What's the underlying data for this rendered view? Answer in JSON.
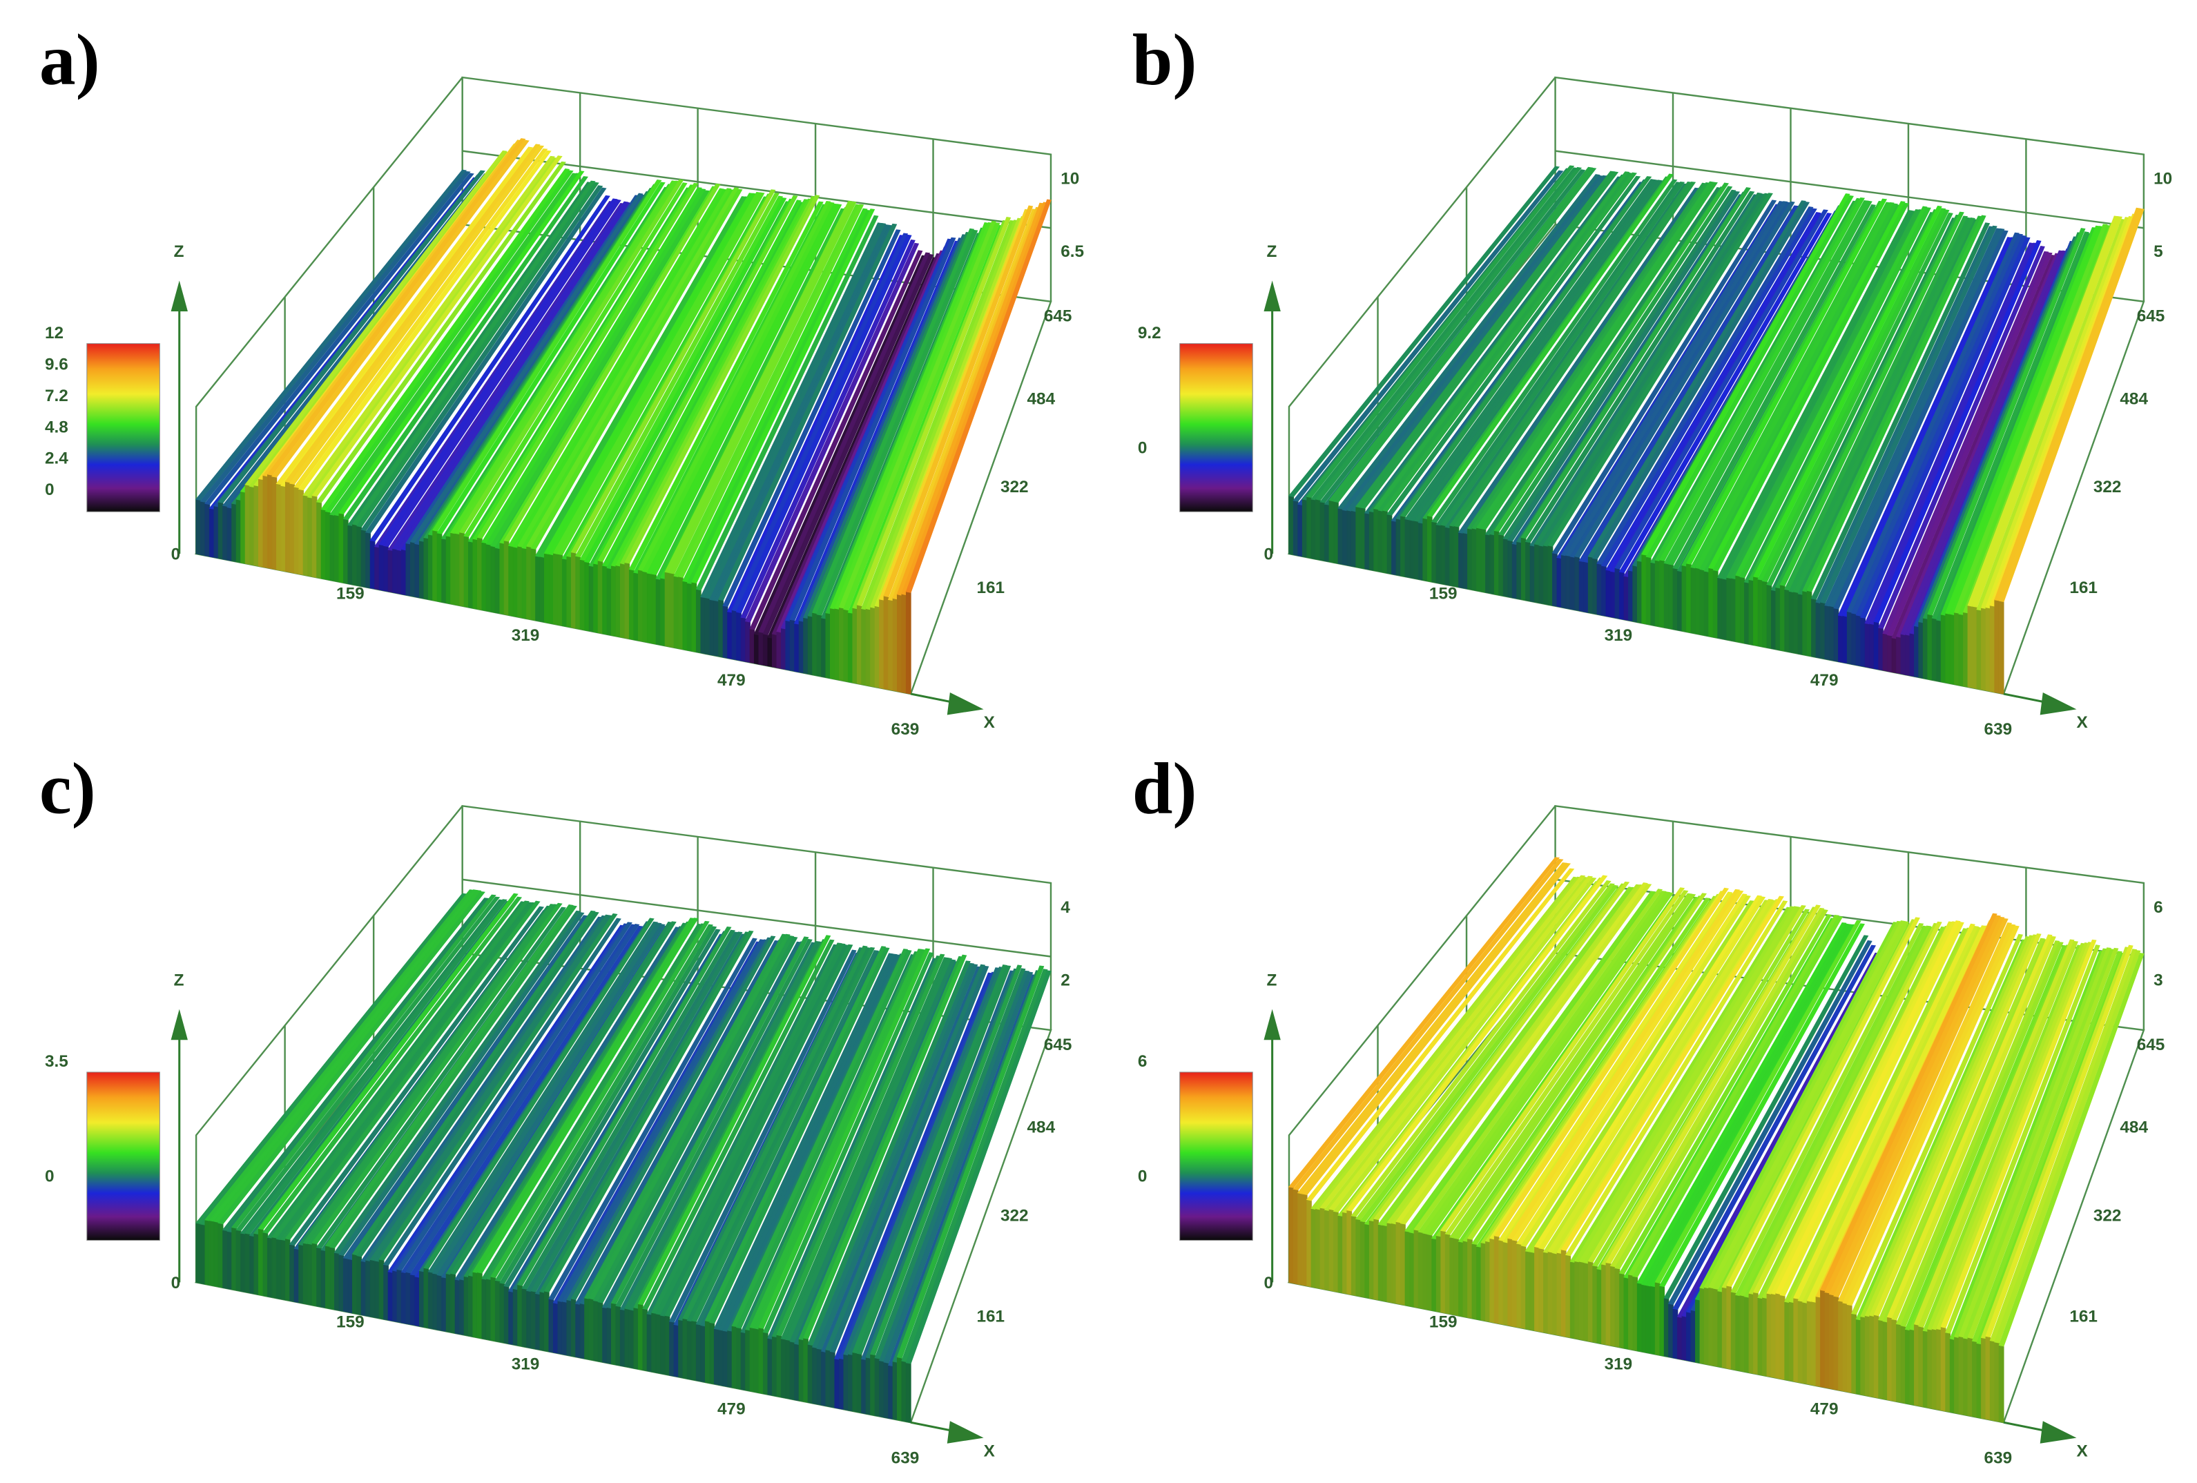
{
  "panels": [
    {
      "label": "a)",
      "axis_z": "Z",
      "axis_x": "X",
      "x_ticks": [
        "0",
        "159",
        "319",
        "479",
        "639"
      ],
      "y_ticks": [
        "161",
        "322",
        "484",
        "645"
      ],
      "z_ticks": [
        "10",
        "6.5"
      ],
      "colorbar_ticks": [
        "12",
        "9.6",
        "7.2",
        "4.8",
        "2.4",
        "0"
      ]
    },
    {
      "label": "b)",
      "axis_z": "Z",
      "axis_x": "X",
      "x_ticks": [
        "0",
        "159",
        "319",
        "479",
        "639"
      ],
      "y_ticks": [
        "161",
        "322",
        "484",
        "645"
      ],
      "z_ticks": [
        "10",
        "5"
      ],
      "colorbar_ticks": [
        "9.2",
        "0"
      ]
    },
    {
      "label": "c)",
      "axis_z": "Z",
      "axis_x": "X",
      "x_ticks": [
        "0",
        "159",
        "319",
        "479",
        "639"
      ],
      "y_ticks": [
        "161",
        "322",
        "484",
        "645"
      ],
      "z_ticks": [
        "4",
        "2"
      ],
      "colorbar_ticks": [
        "3.5",
        "0"
      ]
    },
    {
      "label": "d)",
      "axis_z": "Z",
      "axis_x": "X",
      "x_ticks": [
        "0",
        "159",
        "319",
        "479",
        "639"
      ],
      "y_ticks": [
        "161",
        "322",
        "484",
        "645"
      ],
      "z_ticks": [
        "6",
        "3"
      ],
      "colorbar_ticks": [
        "6",
        "0"
      ]
    }
  ]
}
